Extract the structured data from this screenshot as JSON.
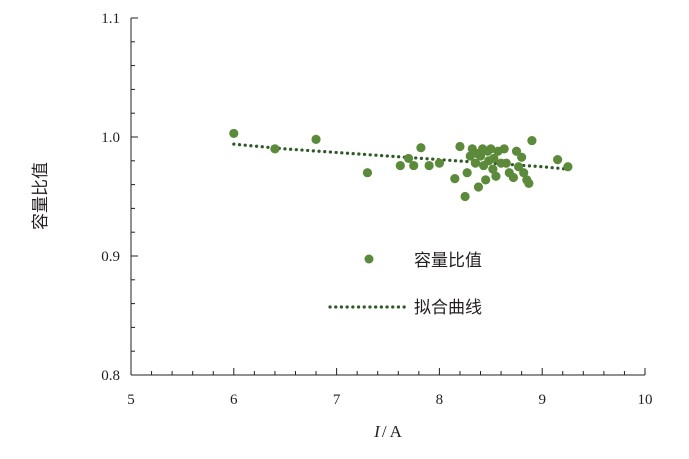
{
  "chart_data": {
    "type": "scatter",
    "title": "",
    "xlabel_var": "I",
    "xlabel_unit": "A",
    "xlabel_sep": "/",
    "ylabel": "容量比值",
    "xlim": [
      5,
      10
    ],
    "ylim": [
      0.8,
      1.1
    ],
    "xticks": [
      "5",
      "6",
      "7",
      "8",
      "9",
      "10"
    ],
    "yticks": [
      "0.8",
      "0.9",
      "1.0",
      "1.1"
    ],
    "x_minor_step": 0.2,
    "y_minor_step": 0.02,
    "grid": false,
    "legend_position": "center-right",
    "colors": {
      "points": "#5b8b3a",
      "fit": "#2f5a28",
      "axis": "#231f20"
    },
    "series": [
      {
        "name": "容量比值",
        "kind": "scatter",
        "points": [
          [
            6.0,
            1.003
          ],
          [
            6.4,
            0.99
          ],
          [
            6.8,
            0.998
          ],
          [
            7.3,
            0.97
          ],
          [
            7.62,
            0.976
          ],
          [
            7.7,
            0.982
          ],
          [
            7.75,
            0.976
          ],
          [
            7.82,
            0.991
          ],
          [
            7.9,
            0.976
          ],
          [
            8.0,
            0.978
          ],
          [
            8.15,
            0.965
          ],
          [
            8.2,
            0.992
          ],
          [
            8.25,
            0.95
          ],
          [
            8.27,
            0.97
          ],
          [
            8.3,
            0.984
          ],
          [
            8.32,
            0.99
          ],
          [
            8.35,
            0.978
          ],
          [
            8.37,
            0.986
          ],
          [
            8.38,
            0.958
          ],
          [
            8.4,
            0.984
          ],
          [
            8.42,
            0.99
          ],
          [
            8.43,
            0.976
          ],
          [
            8.45,
            0.964
          ],
          [
            8.47,
            0.988
          ],
          [
            8.48,
            0.98
          ],
          [
            8.5,
            0.99
          ],
          [
            8.52,
            0.973
          ],
          [
            8.53,
            0.982
          ],
          [
            8.55,
            0.967
          ],
          [
            8.57,
            0.988
          ],
          [
            8.6,
            0.978
          ],
          [
            8.63,
            0.99
          ],
          [
            8.65,
            0.978
          ],
          [
            8.68,
            0.97
          ],
          [
            8.72,
            0.966
          ],
          [
            8.75,
            0.988
          ],
          [
            8.77,
            0.975
          ],
          [
            8.8,
            0.983
          ],
          [
            8.82,
            0.97
          ],
          [
            8.85,
            0.964
          ],
          [
            8.87,
            0.961
          ],
          [
            8.9,
            0.997
          ],
          [
            9.15,
            0.981
          ],
          [
            9.25,
            0.975
          ]
        ]
      },
      {
        "name": "拟合曲线",
        "kind": "line",
        "style": "dotted",
        "x": [
          6.0,
          6.5,
          7.0,
          7.5,
          8.0,
          8.5,
          9.0,
          9.25
        ],
        "y": [
          0.994,
          0.99,
          0.987,
          0.984,
          0.981,
          0.978,
          0.975,
          0.973
        ]
      }
    ]
  }
}
